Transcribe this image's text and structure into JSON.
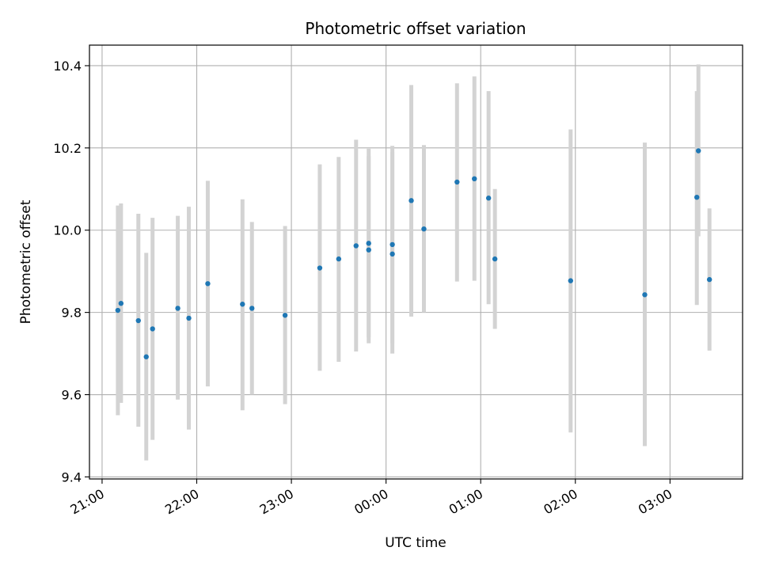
{
  "chart_data": {
    "type": "scatter",
    "title": "Photometric offset variation",
    "xlabel": "UTC time",
    "ylabel": "Photometric offset",
    "grid": true,
    "x_axis": {
      "kind": "time",
      "range": [
        "20:52",
        "03:46"
      ],
      "ticks": [
        "21:00",
        "22:00",
        "23:00",
        "00:00",
        "01:00",
        "02:00",
        "03:00"
      ]
    },
    "y_axis": {
      "range": [
        9.395,
        10.45
      ],
      "ticks": [
        "9.4",
        "9.6",
        "9.8",
        "10.0",
        "10.2",
        "10.4"
      ]
    },
    "colors": {
      "point": "#1f77b4",
      "errorbar": "#d3d3d3",
      "grid": "#b0b0b0"
    },
    "points": [
      {
        "x": "21:10",
        "y": 9.805,
        "low": 9.55,
        "high": 10.06
      },
      {
        "x": "21:12",
        "y": 9.822,
        "low": 9.58,
        "high": 10.065
      },
      {
        "x": "21:23",
        "y": 9.78,
        "low": 9.522,
        "high": 10.04
      },
      {
        "x": "21:28",
        "y": 9.692,
        "low": 9.44,
        "high": 9.945
      },
      {
        "x": "21:32",
        "y": 9.76,
        "low": 9.49,
        "high": 10.03
      },
      {
        "x": "21:48",
        "y": 9.81,
        "low": 9.588,
        "high": 10.035
      },
      {
        "x": "21:55",
        "y": 9.786,
        "low": 9.515,
        "high": 10.057
      },
      {
        "x": "22:07",
        "y": 9.87,
        "low": 9.62,
        "high": 10.12
      },
      {
        "x": "22:29",
        "y": 9.82,
        "low": 9.562,
        "high": 10.075
      },
      {
        "x": "22:35",
        "y": 9.81,
        "low": 9.6,
        "high": 10.02
      },
      {
        "x": "22:56",
        "y": 9.793,
        "low": 9.577,
        "high": 10.01
      },
      {
        "x": "23:18",
        "y": 9.908,
        "low": 9.658,
        "high": 10.16
      },
      {
        "x": "23:30",
        "y": 9.93,
        "low": 9.68,
        "high": 10.178
      },
      {
        "x": "23:41",
        "y": 9.962,
        "low": 9.705,
        "high": 10.22
      },
      {
        "x": "23:49",
        "y": 9.968,
        "low": 9.74,
        "high": 10.198
      },
      {
        "x": "23:49",
        "y": 9.952,
        "low": 9.725,
        "high": 10.18
      },
      {
        "x": "00:04",
        "y": 9.965,
        "low": 9.725,
        "high": 10.205
      },
      {
        "x": "00:04",
        "y": 9.942,
        "low": 9.7,
        "high": 10.19
      },
      {
        "x": "00:16",
        "y": 10.072,
        "low": 9.79,
        "high": 10.353
      },
      {
        "x": "00:24",
        "y": 10.003,
        "low": 9.8,
        "high": 10.207
      },
      {
        "x": "00:45",
        "y": 10.117,
        "low": 9.875,
        "high": 10.357
      },
      {
        "x": "00:56",
        "y": 10.125,
        "low": 9.877,
        "high": 10.374
      },
      {
        "x": "01:05",
        "y": 10.078,
        "low": 9.82,
        "high": 10.338
      },
      {
        "x": "01:09",
        "y": 9.93,
        "low": 9.76,
        "high": 10.1
      },
      {
        "x": "01:57",
        "y": 9.877,
        "low": 9.508,
        "high": 10.245
      },
      {
        "x": "02:44",
        "y": 9.843,
        "low": 9.475,
        "high": 10.213
      },
      {
        "x": "03:17",
        "y": 10.08,
        "low": 9.818,
        "high": 10.338
      },
      {
        "x": "03:18",
        "y": 10.193,
        "low": 9.985,
        "high": 10.403
      },
      {
        "x": "03:25",
        "y": 9.88,
        "low": 9.707,
        "high": 10.053
      }
    ]
  }
}
